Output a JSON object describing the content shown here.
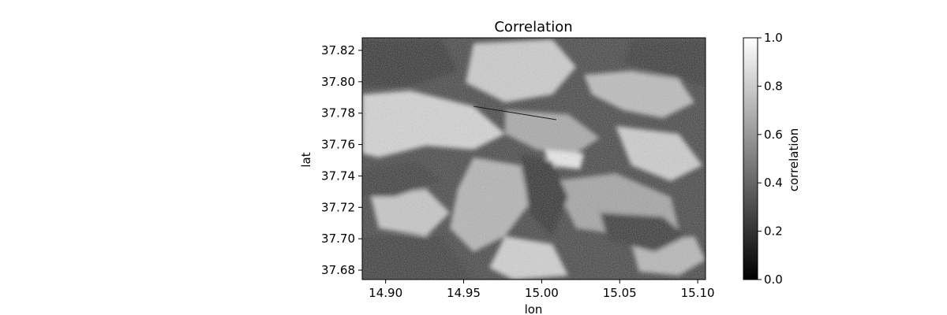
{
  "chart_data": {
    "type": "heatmap",
    "title": "Correlation",
    "xlabel": "lon",
    "ylabel": "lat",
    "xlim": [
      14.885,
      15.105
    ],
    "ylim": [
      37.674,
      37.828
    ],
    "xticks": [
      14.9,
      14.95,
      15.0,
      15.05,
      15.1
    ],
    "xtick_labels": [
      "14.90",
      "14.95",
      "15.00",
      "15.05",
      "15.10"
    ],
    "yticks": [
      37.68,
      37.7,
      37.72,
      37.74,
      37.76,
      37.78,
      37.8,
      37.82
    ],
    "ytick_labels": [
      "37.68",
      "37.70",
      "37.72",
      "37.74",
      "37.76",
      "37.78",
      "37.80",
      "37.82"
    ],
    "colormap": "gray",
    "colorbar": {
      "label": "correlation",
      "range": [
        0.0,
        1.0
      ],
      "ticks": [
        0.0,
        0.2,
        0.4,
        0.6,
        0.8,
        1.0
      ],
      "tick_labels": [
        "0.0",
        "0.2",
        "0.4",
        "0.6",
        "0.8",
        "1.0"
      ]
    },
    "grid": false
  }
}
